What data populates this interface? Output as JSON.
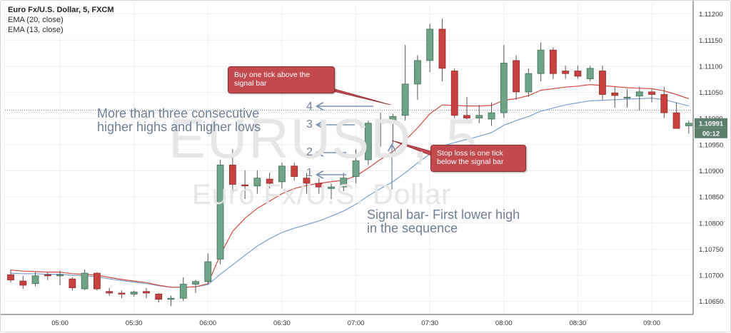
{
  "chart_data": {
    "type": "candlestick",
    "title": "Euro Fx/U.S. Dollar, 5, FXCM",
    "indicators": [
      "EMA (20, close)",
      "EMA (13, close)"
    ],
    "watermark": "EURUSD, 5",
    "watermark_subtitle": "Euro Fx/U.S. Dollar",
    "x_ticks": [
      "05:00",
      "05:30",
      "06:00",
      "06:30",
      "07:00",
      "07:30",
      "08:00",
      "08:30",
      "09:00"
    ],
    "y_ticks": [
      "1.11200",
      "1.11150",
      "1.11100",
      "1.11050",
      "1.11000",
      "1.10950",
      "1.10900",
      "1.10850",
      "1.10800",
      "1.10750",
      "1.10700",
      "1.10650"
    ],
    "ylim": [
      1.10625,
      1.1122
    ],
    "current_price": "1.10991",
    "countdown": "00:12",
    "dotted_level": 1.11016,
    "grid": true,
    "candles": [
      {
        "o": 1.10701,
        "h": 1.10711,
        "l": 1.10686,
        "c": 1.10691
      },
      {
        "o": 1.10689,
        "h": 1.10699,
        "l": 1.10674,
        "c": 1.10681
      },
      {
        "o": 1.10684,
        "h": 1.10706,
        "l": 1.10679,
        "c": 1.10699
      },
      {
        "o": 1.10701,
        "h": 1.10706,
        "l": 1.10691,
        "c": 1.10699
      },
      {
        "o": 1.10699,
        "h": 1.10709,
        "l": 1.10681,
        "c": 1.10701
      },
      {
        "o": 1.10693,
        "h": 1.10696,
        "l": 1.10671,
        "c": 1.10676
      },
      {
        "o": 1.10674,
        "h": 1.10711,
        "l": 1.10672,
        "c": 1.10704
      },
      {
        "o": 1.10704,
        "h": 1.10706,
        "l": 1.10671,
        "c": 1.10674
      },
      {
        "o": 1.10669,
        "h": 1.10676,
        "l": 1.10661,
        "c": 1.10666
      },
      {
        "o": 1.10666,
        "h": 1.10671,
        "l": 1.10656,
        "c": 1.10664
      },
      {
        "o": 1.10664,
        "h": 1.10671,
        "l": 1.10659,
        "c": 1.10668
      },
      {
        "o": 1.10669,
        "h": 1.10676,
        "l": 1.10656,
        "c": 1.10666
      },
      {
        "o": 1.10664,
        "h": 1.10666,
        "l": 1.10648,
        "c": 1.10654
      },
      {
        "o": 1.10654,
        "h": 1.10661,
        "l": 1.10641,
        "c": 1.10656
      },
      {
        "o": 1.10656,
        "h": 1.10696,
        "l": 1.10651,
        "c": 1.10683
      },
      {
        "o": 1.10683,
        "h": 1.10691,
        "l": 1.10666,
        "c": 1.10688
      },
      {
        "o": 1.10688,
        "h": 1.10742,
        "l": 1.10683,
        "c": 1.10726
      },
      {
        "o": 1.10731,
        "h": 1.10921,
        "l": 1.10721,
        "c": 1.10911
      },
      {
        "o": 1.10911,
        "h": 1.10941,
        "l": 1.10861,
        "c": 1.10874
      },
      {
        "o": 1.10873,
        "h": 1.10901,
        "l": 1.10846,
        "c": 1.10871
      },
      {
        "o": 1.10871,
        "h": 1.10901,
        "l": 1.10856,
        "c": 1.10886
      },
      {
        "o": 1.10884,
        "h": 1.10896,
        "l": 1.10866,
        "c": 1.10876
      },
      {
        "o": 1.10879,
        "h": 1.10916,
        "l": 1.10866,
        "c": 1.10909
      },
      {
        "o": 1.10909,
        "h": 1.10916,
        "l": 1.10881,
        "c": 1.10889
      },
      {
        "o": 1.10886,
        "h": 1.10896,
        "l": 1.10856,
        "c": 1.10876
      },
      {
        "o": 1.10876,
        "h": 1.10886,
        "l": 1.10856,
        "c": 1.10869
      },
      {
        "o": 1.10866,
        "h": 1.10876,
        "l": 1.10846,
        "c": 1.10869
      },
      {
        "o": 1.10869,
        "h": 1.10896,
        "l": 1.10861,
        "c": 1.10886
      },
      {
        "o": 1.10889,
        "h": 1.10941,
        "l": 1.10876,
        "c": 1.10919
      },
      {
        "o": 1.10921,
        "h": 1.10996,
        "l": 1.10911,
        "c": 1.10991
      },
      {
        "o": 1.10991,
        "h": 1.11011,
        "l": 1.10946,
        "c": 1.10996
      },
      {
        "o": 1.10996,
        "h": 1.11009,
        "l": 1.10951,
        "c": 1.11004
      },
      {
        "o": 1.11006,
        "h": 1.11141,
        "l": 1.10996,
        "c": 1.11066
      },
      {
        "o": 1.11066,
        "h": 1.11121,
        "l": 1.11036,
        "c": 1.11111
      },
      {
        "o": 1.11111,
        "h": 1.11181,
        "l": 1.11089,
        "c": 1.11171
      },
      {
        "o": 1.11171,
        "h": 1.11191,
        "l": 1.11071,
        "c": 1.11096
      },
      {
        "o": 1.11091,
        "h": 1.11096,
        "l": 1.11001,
        "c": 1.11006
      },
      {
        "o": 1.11006,
        "h": 1.11041,
        "l": 1.10996,
        "c": 1.11001
      },
      {
        "o": 1.11001,
        "h": 1.11026,
        "l": 1.10991,
        "c": 1.11006
      },
      {
        "o": 1.10999,
        "h": 1.11031,
        "l": 1.10986,
        "c": 1.11011
      },
      {
        "o": 1.11011,
        "h": 1.11141,
        "l": 1.11001,
        "c": 1.11106
      },
      {
        "o": 1.11111,
        "h": 1.11121,
        "l": 1.11036,
        "c": 1.11051
      },
      {
        "o": 1.11051,
        "h": 1.11096,
        "l": 1.11041,
        "c": 1.11086
      },
      {
        "o": 1.11086,
        "h": 1.11146,
        "l": 1.11071,
        "c": 1.11131
      },
      {
        "o": 1.11131,
        "h": 1.11136,
        "l": 1.11076,
        "c": 1.11086
      },
      {
        "o": 1.11091,
        "h": 1.11101,
        "l": 1.11076,
        "c": 1.11086
      },
      {
        "o": 1.11091,
        "h": 1.11101,
        "l": 1.11076,
        "c": 1.11081
      },
      {
        "o": 1.11076,
        "h": 1.11101,
        "l": 1.11071,
        "c": 1.11096
      },
      {
        "o": 1.11091,
        "h": 1.11101,
        "l": 1.11036,
        "c": 1.11046
      },
      {
        "o": 1.11049,
        "h": 1.11061,
        "l": 1.11021,
        "c": 1.11044
      },
      {
        "o": 1.11041,
        "h": 1.11056,
        "l": 1.11021,
        "c": 1.11041
      },
      {
        "o": 1.11043,
        "h": 1.11061,
        "l": 1.11016,
        "c": 1.11051
      },
      {
        "o": 1.11051,
        "h": 1.11056,
        "l": 1.11031,
        "c": 1.11046
      },
      {
        "o": 1.11046,
        "h": 1.11061,
        "l": 1.11001,
        "c": 1.11011
      },
      {
        "o": 1.11011,
        "h": 1.11031,
        "l": 1.10981,
        "c": 1.10981
      },
      {
        "o": 1.10986,
        "h": 1.10996,
        "l": 1.10971,
        "c": 1.10991
      }
    ],
    "ema_20": [
      1.1071,
      1.10708,
      1.10707,
      1.10706,
      1.10706,
      1.10703,
      1.10702,
      1.107,
      1.10696,
      1.10692,
      1.10689,
      1.10686,
      1.10681,
      1.10677,
      1.10677,
      1.10678,
      1.10684,
      1.10739,
      1.10784,
      1.10809,
      1.10828,
      1.10842,
      1.10856,
      1.10866,
      1.10872,
      1.10876,
      1.10879,
      1.10882,
      1.1089,
      1.10905,
      1.10922,
      1.10937,
      1.10958,
      1.10982,
      1.11009,
      1.11026,
      1.11025,
      1.11024,
      1.11024,
      1.11025,
      1.11035,
      1.11038,
      1.11044,
      1.11054,
      1.11057,
      1.1106,
      1.11062,
      1.11065,
      1.11063,
      1.11061,
      1.11059,
      1.11058,
      1.11057,
      1.11053,
      1.11046,
      1.11038
    ],
    "ema_13": [
      1.10704,
      1.10703,
      1.10703,
      1.10702,
      1.10702,
      1.107,
      1.10699,
      1.10697,
      1.10693,
      1.1069,
      1.10687,
      1.10684,
      1.1068,
      1.10677,
      1.10677,
      1.10678,
      1.10682,
      1.10702,
      1.1072,
      1.10738,
      1.10756,
      1.1077,
      1.10782,
      1.1079,
      1.10797,
      1.10804,
      1.10813,
      1.10823,
      1.10836,
      1.10852,
      1.10866,
      1.10879,
      1.10896,
      1.10915,
      1.10932,
      1.10947,
      1.10954,
      1.1096,
      1.10966,
      1.10973,
      1.10987,
      1.10996,
      1.11004,
      1.11014,
      1.1102,
      1.11026,
      1.1103,
      1.11034,
      1.11035,
      1.11036,
      1.11037,
      1.11038,
      1.11039,
      1.11036,
      1.1103,
      1.11024
    ]
  },
  "annotations": {
    "main_text_line1": "More than three consecutive",
    "main_text_line2": "higher highs and higher lows",
    "signal_line1": "Signal bar- First lower high",
    "signal_line2": "in the sequence",
    "buy_bubble_line1": "Buy one tick above the",
    "buy_bubble_line2": "signal bar",
    "stop_bubble_line1": "Stop loss is one tick",
    "stop_bubble_line2": "below the signal bar",
    "counts": [
      "1",
      "2",
      "3",
      "4"
    ]
  },
  "colors": {
    "bull": "#6fa487",
    "bull_edge": "#3d6f55",
    "bear": "#c9413f",
    "bear_edge": "#8f2c2a",
    "ema20": "#d44a45",
    "ema13": "#7a9fcb",
    "grid": "#eeeeee",
    "axis_text": "#333333",
    "price_badge": "#5b7f6a",
    "arrow": "#7c93ad"
  }
}
